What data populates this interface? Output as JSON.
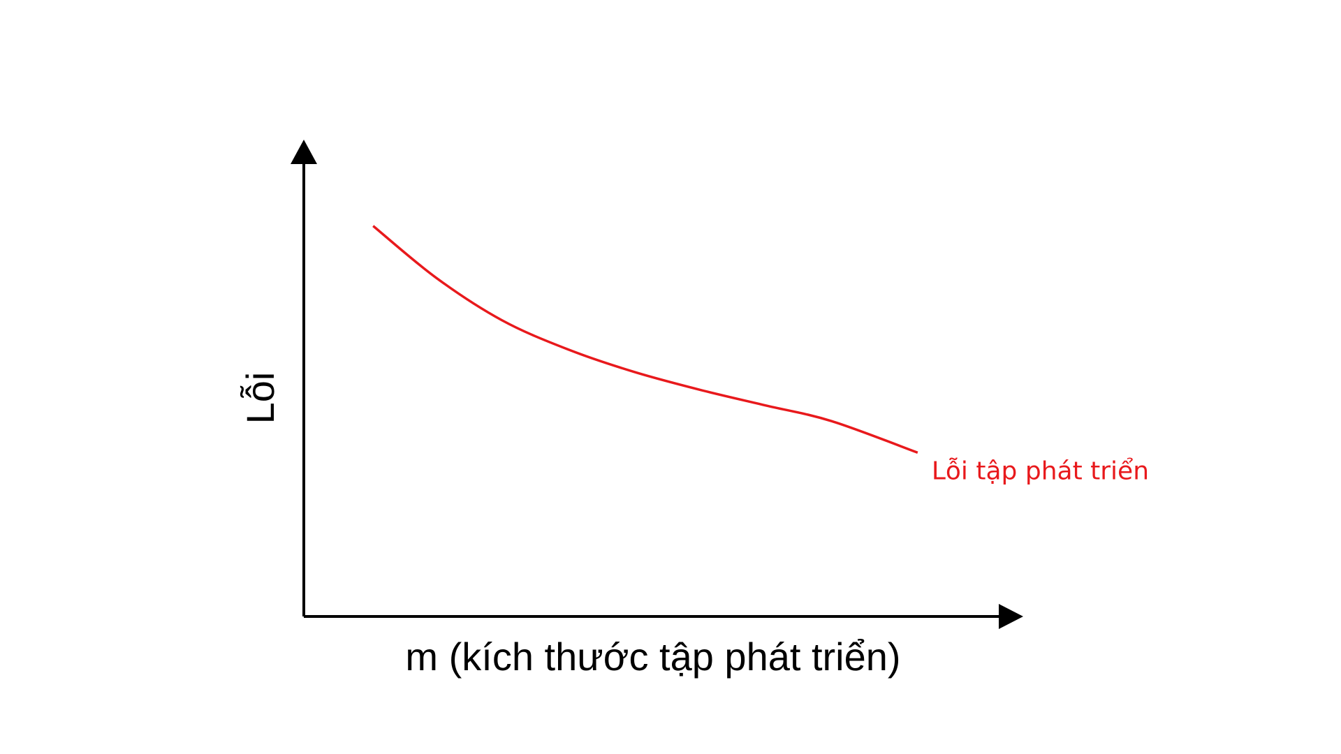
{
  "chart_data": {
    "type": "line",
    "title": "",
    "xlabel": "m (kích thước tập phát triển)",
    "ylabel": "Lỗi",
    "xlim": [
      0,
      10
    ],
    "ylim": [
      0,
      10
    ],
    "grid": false,
    "ticks": false,
    "series": [
      {
        "name": "Lỗi tập phát triển",
        "color": "#e8191c",
        "x": [
          1.05,
          2.0,
          3.0,
          4.0,
          5.0,
          6.0,
          7.0,
          8.0,
          9.3
        ],
        "y": [
          8.7,
          7.55,
          6.6,
          5.95,
          5.45,
          5.05,
          4.7,
          4.35,
          3.65
        ]
      }
    ]
  }
}
